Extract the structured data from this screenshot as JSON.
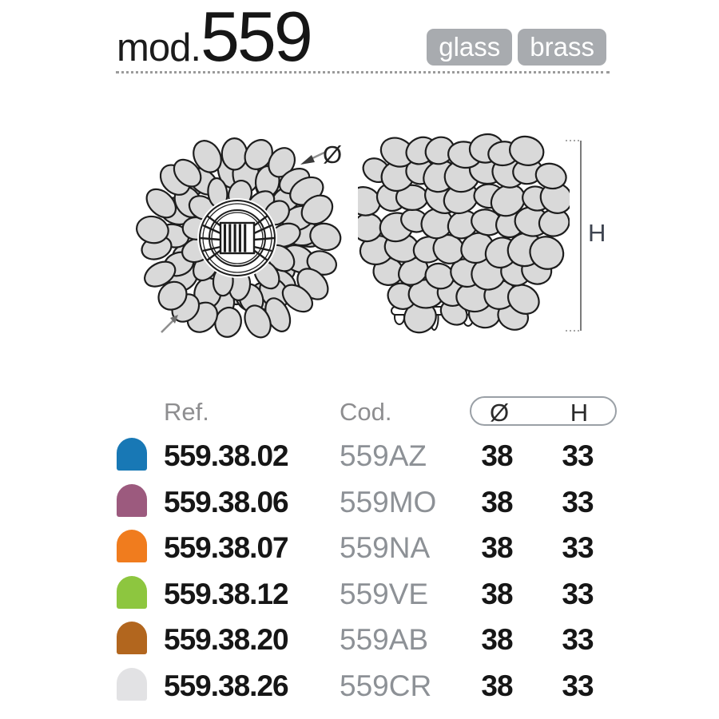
{
  "header": {
    "model_prefix": "mod.",
    "model_number": "559",
    "tags": [
      "glass",
      "brass"
    ]
  },
  "diagram": {
    "diameter_symbol": "Ø",
    "height_symbol": "H"
  },
  "table": {
    "headers": {
      "ref": "Ref.",
      "cod": "Cod.",
      "diameter": "Ø",
      "height": "H"
    },
    "rows": [
      {
        "color_name": "azure",
        "swatch": "#1878b5",
        "ref": "559.38.02",
        "cod": "559AZ",
        "diameter": "38",
        "height": "33"
      },
      {
        "color_name": "mauve",
        "swatch": "#9c5a7e",
        "ref": "559.38.06",
        "cod": "559MO",
        "diameter": "38",
        "height": "33"
      },
      {
        "color_name": "orange",
        "swatch": "#f07c1e",
        "ref": "559.38.07",
        "cod": "559NA",
        "diameter": "38",
        "height": "33"
      },
      {
        "color_name": "green",
        "swatch": "#8dc63f",
        "ref": "559.38.12",
        "cod": "559VE",
        "diameter": "38",
        "height": "33"
      },
      {
        "color_name": "amber",
        "swatch": "#b2661e",
        "ref": "559.38.20",
        "cod": "559AB",
        "diameter": "38",
        "height": "33"
      },
      {
        "color_name": "crystal",
        "swatch": "#e2e2e4",
        "ref": "559.38.26",
        "cod": "559CR",
        "diameter": "38",
        "height": "33"
      }
    ]
  },
  "drawing_colors": {
    "ball_fill": "#d9d9d9",
    "line": "#1d1d1d",
    "leader_gray": "#8f8f8f"
  }
}
